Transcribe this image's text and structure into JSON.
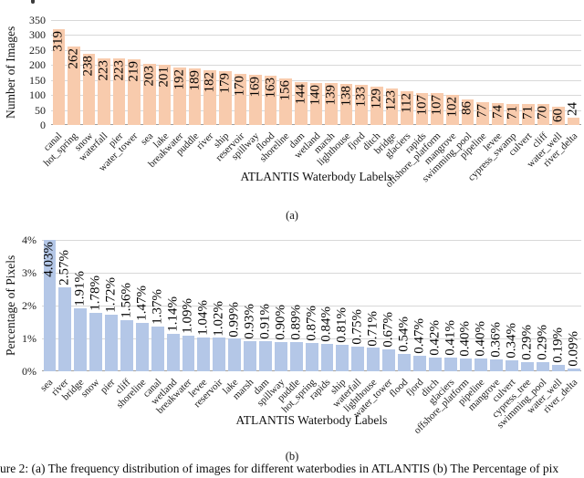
{
  "figure": {
    "caption": "ure 2: (a) The frequency distribution of images for different waterbodies in ATLANTIS (b) The Percentage of pix",
    "panel_a_label": "(a)",
    "panel_b_label": "(b)"
  },
  "chart_data": [
    {
      "type": "bar",
      "title": "",
      "xlabel": "ATLANTIS Waterbody Labels",
      "ylabel": "Number of Images",
      "ylim": [
        0,
        350
      ],
      "ytick_step": 50,
      "ytick_labels": [
        "0",
        "50",
        "100",
        "150",
        "200",
        "250",
        "300",
        "350"
      ],
      "grid": "horizontal-major",
      "legend_position": "none",
      "bar_color": "#F8CBAD",
      "categories": [
        "canal",
        "hot_spring",
        "snow",
        "waterfall",
        "pier",
        "water_tower",
        "sea",
        "lake",
        "breakwater",
        "puddle",
        "river",
        "ship",
        "reservoir",
        "spillway",
        "flood",
        "shoreline",
        "dam",
        "wetland",
        "marsh",
        "lighthouse",
        "fjord",
        "ditch",
        "bridge",
        "glaciers",
        "rapids",
        "offshore_platform",
        "mangrove",
        "swimming_pool",
        "pipeline",
        "levee",
        "cypress_swamp",
        "culvert",
        "cliff",
        "water_well",
        "river_delta"
      ],
      "values": [
        319,
        262,
        238,
        223,
        223,
        219,
        203,
        201,
        192,
        189,
        182,
        179,
        170,
        169,
        163,
        156,
        144,
        140,
        139,
        138,
        133,
        129,
        123,
        112,
        107,
        107,
        102,
        86,
        77,
        74,
        71,
        71,
        70,
        60,
        24
      ],
      "value_labels": [
        "319",
        "262",
        "238",
        "223",
        "223",
        "219",
        "203",
        "201",
        "192",
        "189",
        "182",
        "179",
        "170",
        "169",
        "163",
        "156",
        "144",
        "140",
        "139",
        "138",
        "133",
        "129",
        "123",
        "112",
        "107",
        "107",
        "102",
        "86",
        "77",
        "74",
        "71",
        "71",
        "70",
        "60",
        "24"
      ]
    },
    {
      "type": "bar",
      "title": "",
      "xlabel": "ATLANTIS Waterbody Labels",
      "ylabel": "Percentage of Pixels",
      "ylim": [
        0,
        4
      ],
      "ytick_step": 1,
      "ytick_labels": [
        "0%",
        "1%",
        "2%",
        "3%",
        "4%"
      ],
      "grid": "horizontal-major",
      "legend_position": "none",
      "bar_color": "#B4C7E7",
      "categories": [
        "sea",
        "river",
        "bridge",
        "snow",
        "pier",
        "cliff",
        "shoreline",
        "canal",
        "wetland",
        "breakwater",
        "levee",
        "reservoir",
        "lake",
        "marsh",
        "dam",
        "spillway",
        "puddle",
        "hot_spring",
        "rapids",
        "ship",
        "waterfall",
        "lighthouse",
        "water_tower",
        "flood",
        "fjord",
        "ditch",
        "glaciers",
        "offshore_platform",
        "pipeline",
        "mangrove",
        "culvert",
        "cypress_tree",
        "swimming_pool",
        "water_well",
        "river_delta"
      ],
      "values": [
        4.03,
        2.57,
        1.91,
        1.78,
        1.72,
        1.56,
        1.47,
        1.37,
        1.14,
        1.09,
        1.04,
        1.02,
        0.99,
        0.93,
        0.91,
        0.9,
        0.89,
        0.87,
        0.84,
        0.81,
        0.75,
        0.71,
        0.67,
        0.54,
        0.47,
        0.42,
        0.41,
        0.4,
        0.4,
        0.36,
        0.34,
        0.29,
        0.29,
        0.19,
        0.09
      ],
      "value_labels": [
        "4.03%",
        "2.57%",
        "1.91%",
        "1.78%",
        "1.72%",
        "1.56%",
        "1.47%",
        "1.37%",
        "1.14%",
        "1.09%",
        "1.04%",
        "1.02%",
        "0.99%",
        "0.93%",
        "0.91%",
        "0.90%",
        "0.89%",
        "0.87%",
        "0.84%",
        "0.81%",
        "0.75%",
        "0.71%",
        "0.67%",
        "0.54%",
        "0.47%",
        "0.42%",
        "0.41%",
        "0.40%",
        "0.40%",
        "0.36%",
        "0.34%",
        "0.29%",
        "0.29%",
        "0.19%",
        "0.09%"
      ]
    }
  ]
}
